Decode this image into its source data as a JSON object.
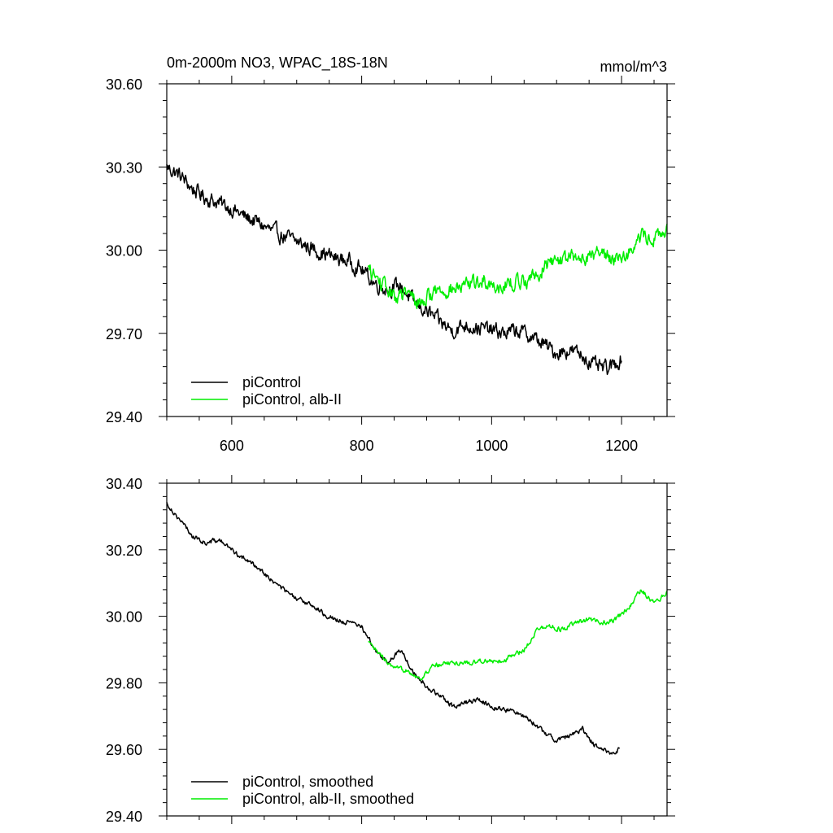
{
  "chart_data": [
    {
      "type": "line",
      "title": "0m-2000m NO3, WPAC_18S-18N",
      "units": "mmol/m^3",
      "xlim": [
        500,
        1270
      ],
      "ylim": [
        29.4,
        30.6
      ],
      "xticks": [
        600,
        800,
        1000,
        1200
      ],
      "xtick_labels": [
        "600",
        "800",
        "1000",
        "1200"
      ],
      "yticks": [
        29.4,
        29.7,
        30.0,
        30.3,
        30.6
      ],
      "ytick_labels": [
        "29.40",
        "29.70",
        "30.00",
        "30.30",
        "30.60"
      ],
      "grid": false,
      "legend_position": "bottom-left",
      "series": [
        {
          "name": "piControl",
          "color": "#000000",
          "x_range": [
            500,
            1200
          ],
          "keypoints": [
            [
              500,
              30.3
            ],
            [
              520,
              30.27
            ],
            [
              540,
              30.22
            ],
            [
              560,
              30.19
            ],
            [
              580,
              30.17
            ],
            [
              600,
              30.15
            ],
            [
              620,
              30.12
            ],
            [
              640,
              30.1
            ],
            [
              660,
              30.07
            ],
            [
              680,
              30.05
            ],
            [
              700,
              30.03
            ],
            [
              720,
              30.01
            ],
            [
              740,
              29.99
            ],
            [
              760,
              29.97
            ],
            [
              780,
              29.96
            ],
            [
              800,
              29.93
            ],
            [
              820,
              29.88
            ],
            [
              840,
              29.86
            ],
            [
              860,
              29.87
            ],
            [
              880,
              29.81
            ],
            [
              900,
              29.78
            ],
            [
              920,
              29.74
            ],
            [
              940,
              29.71
            ],
            [
              960,
              29.73
            ],
            [
              980,
              29.72
            ],
            [
              1000,
              29.71
            ],
            [
              1020,
              29.7
            ],
            [
              1040,
              29.71
            ],
            [
              1060,
              29.69
            ],
            [
              1080,
              29.66
            ],
            [
              1100,
              29.63
            ],
            [
              1120,
              29.64
            ],
            [
              1140,
              29.62
            ],
            [
              1160,
              29.58
            ],
            [
              1180,
              29.57
            ],
            [
              1200,
              29.61
            ]
          ],
          "noise_amplitude": 0.045
        },
        {
          "name": "piControl, alb-II",
          "color": "#00ee00",
          "x_range": [
            810,
            1270
          ],
          "keypoints": [
            [
              810,
              29.93
            ],
            [
              830,
              29.88
            ],
            [
              850,
              29.83
            ],
            [
              870,
              29.84
            ],
            [
              890,
              29.81
            ],
            [
              910,
              29.85
            ],
            [
              930,
              29.86
            ],
            [
              950,
              29.86
            ],
            [
              970,
              29.88
            ],
            [
              990,
              29.89
            ],
            [
              1010,
              29.87
            ],
            [
              1030,
              29.88
            ],
            [
              1050,
              29.89
            ],
            [
              1070,
              29.91
            ],
            [
              1090,
              29.96
            ],
            [
              1110,
              29.97
            ],
            [
              1130,
              29.97
            ],
            [
              1150,
              29.98
            ],
            [
              1170,
              29.99
            ],
            [
              1190,
              29.97
            ],
            [
              1210,
              29.99
            ],
            [
              1230,
              30.05
            ],
            [
              1250,
              30.04
            ],
            [
              1270,
              30.07
            ]
          ],
          "noise_amplitude": 0.045
        }
      ]
    },
    {
      "type": "line",
      "xlim": [
        500,
        1270
      ],
      "ylim": [
        29.4,
        30.4
      ],
      "xticks": [
        600,
        800,
        1000,
        1200
      ],
      "yticks": [
        29.4,
        29.6,
        29.8,
        30.0,
        30.2,
        30.4
      ],
      "ytick_labels": [
        "29.40",
        "29.60",
        "29.80",
        "30.00",
        "30.20",
        "30.40"
      ],
      "grid": false,
      "legend_position": "bottom-left",
      "series": [
        {
          "name": "piControl, smoothed",
          "color": "#000000",
          "x_range": [
            500,
            1197
          ],
          "keypoints": [
            [
              500,
              30.34
            ],
            [
              520,
              30.29
            ],
            [
              540,
              30.24
            ],
            [
              560,
              30.22
            ],
            [
              580,
              30.23
            ],
            [
              600,
              30.2
            ],
            [
              620,
              30.17
            ],
            [
              640,
              30.15
            ],
            [
              660,
              30.11
            ],
            [
              680,
              30.08
            ],
            [
              700,
              30.05
            ],
            [
              720,
              30.04
            ],
            [
              740,
              30.01
            ],
            [
              760,
              29.99
            ],
            [
              780,
              29.98
            ],
            [
              800,
              29.97
            ],
            [
              820,
              29.9
            ],
            [
              840,
              29.86
            ],
            [
              860,
              29.9
            ],
            [
              880,
              29.83
            ],
            [
              900,
              29.79
            ],
            [
              920,
              29.76
            ],
            [
              940,
              29.73
            ],
            [
              960,
              29.74
            ],
            [
              980,
              29.75
            ],
            [
              1000,
              29.73
            ],
            [
              1020,
              29.72
            ],
            [
              1040,
              29.71
            ],
            [
              1060,
              29.69
            ],
            [
              1080,
              29.65
            ],
            [
              1100,
              29.63
            ],
            [
              1120,
              29.64
            ],
            [
              1140,
              29.66
            ],
            [
              1160,
              29.61
            ],
            [
              1180,
              29.59
            ],
            [
              1197,
              29.6
            ]
          ],
          "noise_amplitude": 0.012
        },
        {
          "name": "piControl, alb-II, smoothed",
          "color": "#00ee00",
          "x_range": [
            810,
            1270
          ],
          "keypoints": [
            [
              810,
              29.92
            ],
            [
              830,
              29.88
            ],
            [
              850,
              29.84
            ],
            [
              870,
              29.84
            ],
            [
              890,
              29.81
            ],
            [
              910,
              29.85
            ],
            [
              930,
              29.86
            ],
            [
              950,
              29.86
            ],
            [
              970,
              29.86
            ],
            [
              990,
              29.87
            ],
            [
              1010,
              29.86
            ],
            [
              1030,
              29.88
            ],
            [
              1050,
              29.9
            ],
            [
              1070,
              29.96
            ],
            [
              1090,
              29.97
            ],
            [
              1110,
              29.96
            ],
            [
              1130,
              29.98
            ],
            [
              1150,
              29.99
            ],
            [
              1170,
              29.98
            ],
            [
              1190,
              29.99
            ],
            [
              1210,
              30.02
            ],
            [
              1230,
              30.08
            ],
            [
              1250,
              30.04
            ],
            [
              1270,
              30.07
            ]
          ],
          "noise_amplitude": 0.012
        }
      ]
    }
  ]
}
